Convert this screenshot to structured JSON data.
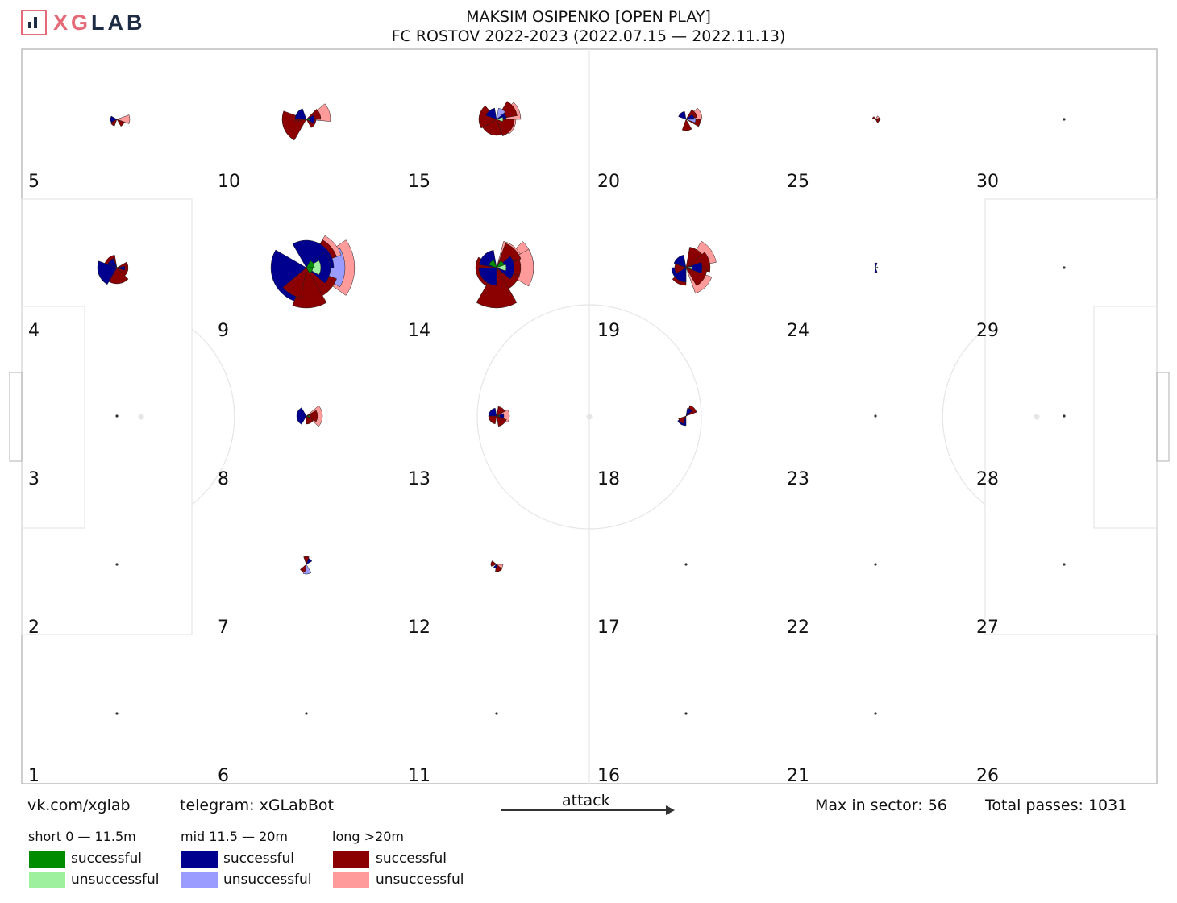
{
  "header": {
    "logo_text_part1": "XG",
    "logo_text_part2": "LAB",
    "title_line1": "MAKSIM OSIPENKO [OPEN PLAY]",
    "title_line2": "FC ROSTOV 2022-2023 (2022.07.15 — 2022.11.13)"
  },
  "footer": {
    "vk": "vk.com/xglab",
    "telegram": "telegram: xGLabBot",
    "attack": "attack",
    "max_sector": "Max in sector: 56",
    "total_passes": "Total passes: 1031"
  },
  "legend": {
    "short": {
      "label": "short 0 — 11.5m",
      "successful": "successful",
      "unsuccessful": "unsuccessful",
      "color_s": "#008c00",
      "color_u": "#9ef09e"
    },
    "mid": {
      "label": "mid 11.5 — 20m",
      "successful": "successful",
      "unsuccessful": "unsuccessful",
      "color_s": "#00008f",
      "color_u": "#9b9cff"
    },
    "long": {
      "label": "long >20m",
      "successful": "successful",
      "unsuccessful": "unsuccessful",
      "color_s": "#8b0000",
      "color_u": "#ff9b9b"
    }
  },
  "chart_data": {
    "type": "pass-rose-grid",
    "attack_direction": "left-to-right",
    "grid": {
      "columns": 6,
      "rows": 5
    },
    "zone_labels": [
      "1",
      "2",
      "3",
      "4",
      "5",
      "6",
      "7",
      "8",
      "9",
      "10",
      "11",
      "12",
      "13",
      "14",
      "15",
      "16",
      "17",
      "18",
      "19",
      "20",
      "21",
      "22",
      "23",
      "24",
      "25",
      "26",
      "27",
      "28",
      "29",
      "30"
    ],
    "max_in_sector": 56,
    "total_passes": 1031,
    "roses": [
      {
        "zone": 1,
        "size": "dot"
      },
      {
        "zone": 2,
        "size": "dot"
      },
      {
        "zone": 3,
        "size": "dot"
      },
      {
        "zone": 4,
        "wedges": [
          [
            45,
            90,
            "#ff9b9b",
            18
          ],
          [
            -30,
            45,
            "#8b0000",
            14
          ],
          [
            45,
            120,
            "#8b0000",
            20
          ],
          [
            120,
            200,
            "#00008f",
            24
          ],
          [
            200,
            260,
            "#8b0000",
            16
          ],
          [
            -10,
            20,
            "#00008f",
            10
          ],
          [
            200,
            250,
            "#00008f",
            12
          ]
        ]
      },
      {
        "zone": 5,
        "wedges": [
          [
            -20,
            20,
            "#ff9b9b",
            16
          ],
          [
            20,
            60,
            "#8b0000",
            10
          ],
          [
            150,
            210,
            "#00008f",
            8
          ],
          [
            110,
            150,
            "#8b0000",
            9
          ]
        ]
      },
      {
        "zone": 6,
        "size": "dot"
      },
      {
        "zone": 7,
        "wedges": [
          [
            250,
            290,
            "#8b0000",
            10
          ],
          [
            290,
            330,
            "#00008f",
            8
          ],
          [
            60,
            110,
            "#9b9cff",
            12
          ],
          [
            100,
            140,
            "#8b0000",
            10
          ]
        ]
      },
      {
        "zone": 8,
        "wedges": [
          [
            -40,
            40,
            "#ff9b9b",
            20
          ],
          [
            -30,
            30,
            "#8b0000",
            14
          ],
          [
            120,
            240,
            "#00008f",
            12
          ],
          [
            30,
            90,
            "#8b0000",
            10
          ],
          [
            -10,
            20,
            "#008c00",
            5
          ]
        ]
      },
      {
        "zone": 9,
        "wedges": [
          [
            -35,
            35,
            "#ff9b9b",
            60
          ],
          [
            -30,
            30,
            "#9b9cff",
            48
          ],
          [
            -60,
            -20,
            "#ff9b9b",
            46
          ],
          [
            -60,
            -20,
            "#8b0000",
            40
          ],
          [
            20,
            80,
            "#8b0000",
            40
          ],
          [
            -80,
            -40,
            "#8b0000",
            30
          ],
          [
            60,
            110,
            "#8b0000",
            50
          ],
          [
            110,
            210,
            "#00008f",
            44
          ],
          [
            100,
            140,
            "#8b0000",
            38
          ],
          [
            -120,
            0,
            "#00008f",
            34
          ],
          [
            -40,
            40,
            "#00008f",
            30
          ],
          [
            -30,
            30,
            "#9ef09e",
            18
          ],
          [
            -60,
            0,
            "#008c00",
            10
          ],
          [
            0,
            60,
            "#008c00",
            8
          ]
        ]
      },
      {
        "zone": 10,
        "wedges": [
          [
            -40,
            5,
            "#ff9b9b",
            30
          ],
          [
            120,
            200,
            "#8b0000",
            30
          ],
          [
            -45,
            0,
            "#8b0000",
            18
          ],
          [
            0,
            60,
            "#8b0000",
            12
          ],
          [
            170,
            230,
            "#8b0000",
            14
          ],
          [
            180,
            250,
            "#00008f",
            14
          ],
          [
            -30,
            30,
            "#00008f",
            10
          ],
          [
            -10,
            20,
            "#008c00",
            5
          ]
        ]
      },
      {
        "zone": 11,
        "size": "dot"
      },
      {
        "zone": 12,
        "wedges": [
          [
            0,
            40,
            "#ff9b9b",
            8
          ],
          [
            40,
            100,
            "#8b0000",
            9
          ],
          [
            160,
            220,
            "#8b0000",
            7
          ],
          [
            90,
            140,
            "#00008f",
            5
          ]
        ]
      },
      {
        "zone": 13,
        "wedges": [
          [
            -30,
            30,
            "#ff9b9b",
            16
          ],
          [
            20,
            80,
            "#8b0000",
            13
          ],
          [
            -80,
            -30,
            "#8b0000",
            12
          ],
          [
            100,
            180,
            "#8b0000",
            10
          ],
          [
            180,
            260,
            "#00008f",
            10
          ],
          [
            -20,
            20,
            "#00008f",
            9
          ],
          [
            -10,
            10,
            "#008c00",
            4
          ]
        ]
      },
      {
        "zone": 14,
        "wedges": [
          [
            -45,
            10,
            "#ff9b9b",
            46
          ],
          [
            -30,
            30,
            "#ff9b9b",
            46
          ],
          [
            -75,
            -30,
            "#ff9b9b",
            34
          ],
          [
            -70,
            -20,
            "#8b0000",
            32
          ],
          [
            -20,
            30,
            "#8b0000",
            30
          ],
          [
            20,
            80,
            "#8b0000",
            30
          ],
          [
            60,
            120,
            "#8b0000",
            50
          ],
          [
            120,
            210,
            "#8b0000",
            26
          ],
          [
            190,
            260,
            "#00008f",
            22
          ],
          [
            -40,
            40,
            "#00008f",
            22
          ],
          [
            90,
            180,
            "#00008f",
            22
          ],
          [
            -20,
            20,
            "#9ef09e",
            12
          ],
          [
            200,
            250,
            "#008c00",
            10
          ],
          [
            -60,
            -20,
            "#008c00",
            10
          ]
        ]
      },
      {
        "zone": 15,
        "wedges": [
          [
            -45,
            0,
            "#ff9b9b",
            30
          ],
          [
            0,
            50,
            "#ff9b9b",
            24
          ],
          [
            -60,
            -10,
            "#8b0000",
            26
          ],
          [
            0,
            70,
            "#8b0000",
            22
          ],
          [
            70,
            150,
            "#8b0000",
            20
          ],
          [
            150,
            230,
            "#8b0000",
            22
          ],
          [
            200,
            260,
            "#00008f",
            14
          ],
          [
            -60,
            0,
            "#00008f",
            12
          ],
          [
            -20,
            20,
            "#9ef09e",
            8
          ],
          [
            -80,
            -40,
            "#9b9cff",
            14
          ]
        ]
      },
      {
        "zone": 16,
        "size": "dot"
      },
      {
        "zone": 17,
        "size": "dot"
      },
      {
        "zone": 18,
        "wedges": [
          [
            -70,
            -20,
            "#8b0000",
            14
          ],
          [
            -80,
            -40,
            "#00008f",
            10
          ],
          [
            90,
            150,
            "#00008f",
            12
          ],
          [
            110,
            160,
            "#8b0000",
            10
          ]
        ]
      },
      {
        "zone": 19,
        "wedges": [
          [
            -60,
            -10,
            "#ff9b9b",
            38
          ],
          [
            20,
            70,
            "#ff9b9b",
            34
          ],
          [
            -40,
            10,
            "#8b0000",
            30
          ],
          [
            0,
            60,
            "#8b0000",
            26
          ],
          [
            -80,
            -40,
            "#8b0000",
            26
          ],
          [
            90,
            140,
            "#8b0000",
            22
          ],
          [
            -20,
            20,
            "#00008f",
            20
          ],
          [
            90,
            180,
            "#00008f",
            18
          ],
          [
            200,
            260,
            "#00008f",
            16
          ],
          [
            -10,
            15,
            "#9ef09e",
            8
          ],
          [
            150,
            200,
            "#8b0000",
            14
          ]
        ]
      },
      {
        "zone": 20,
        "wedges": [
          [
            -45,
            0,
            "#ff9b9b",
            20
          ],
          [
            0,
            30,
            "#8b0000",
            18
          ],
          [
            -60,
            -10,
            "#8b0000",
            14
          ],
          [
            60,
            110,
            "#8b0000",
            14
          ],
          [
            200,
            260,
            "#00008f",
            10
          ],
          [
            -10,
            20,
            "#9b9cff",
            12
          ],
          [
            -40,
            0,
            "#00008f",
            10
          ]
        ]
      },
      {
        "zone": 21,
        "size": "dot"
      },
      {
        "zone": 22,
        "size": "dot"
      },
      {
        "zone": 23,
        "size": "dot"
      },
      {
        "zone": 24,
        "wedges": [
          [
            -100,
            -70,
            "#00008f",
            6
          ],
          [
            70,
            100,
            "#00008f",
            6
          ],
          [
            -20,
            20,
            "#9b9cff",
            3
          ]
        ]
      },
      {
        "zone": 25,
        "wedges": [
          [
            -20,
            20,
            "#8b0000",
            6
          ],
          [
            -60,
            -20,
            "#ff9b9b",
            5
          ],
          [
            20,
            60,
            "#8b0000",
            5
          ],
          [
            200,
            240,
            "#8b0000",
            4
          ]
        ]
      },
      {
        "zone": 26,
        "size": "none"
      },
      {
        "zone": 27,
        "size": "dot"
      },
      {
        "zone": 28,
        "size": "dot"
      },
      {
        "zone": 29,
        "size": "dot"
      },
      {
        "zone": 30,
        "size": "dot"
      }
    ]
  }
}
